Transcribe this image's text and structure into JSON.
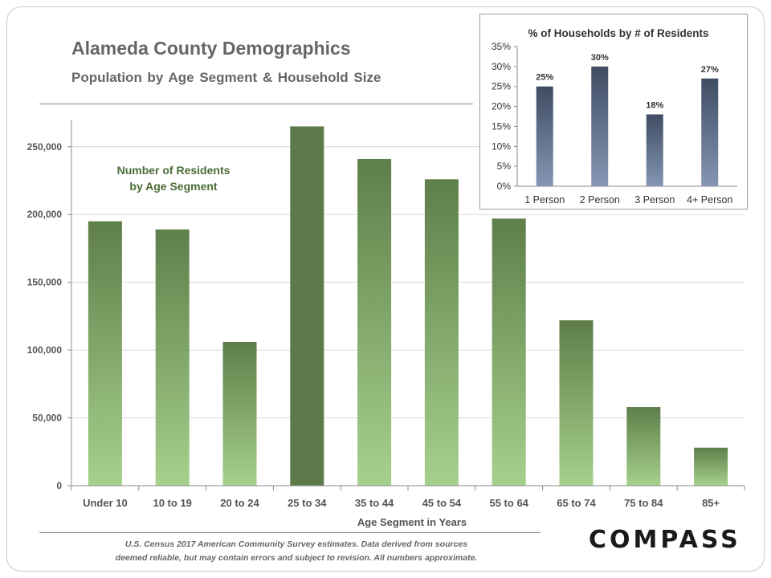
{
  "header": {
    "title": "Alameda County Demographics",
    "subtitle": "Population by Age Segment & Household Size"
  },
  "footer": {
    "note_line1": "U.S. Census 2017 American Community Survey estimates. Data derived from sources",
    "note_line2": "deemed reliable, but may contain errors and subject to revision. All numbers approximate.",
    "logo": "COMPASS"
  },
  "chart_data": [
    {
      "type": "bar",
      "annotation": "Number of Residents by Age Segment",
      "annotation_lines": [
        "Number of Residents",
        "by Age Segment"
      ],
      "xlabel": "Age Segment in Years",
      "ylabel": "",
      "categories": [
        "Under 10",
        "10 to 19",
        "20 to 24",
        "25 to 34",
        "35 to 44",
        "45 to 54",
        "55 to 64",
        "65 to 74",
        "75 to 84",
        "85+"
      ],
      "values": [
        195000,
        189000,
        106000,
        265000,
        241000,
        226000,
        197000,
        122000,
        58000,
        28000
      ],
      "highlight_index": 3,
      "ylim": [
        0,
        270000
      ],
      "yticks": [
        0,
        50000,
        100000,
        150000,
        200000,
        250000
      ],
      "ytick_labels": [
        "0",
        "50,000",
        "100,000",
        "150,000",
        "200,000",
        "250,000"
      ],
      "grid": true,
      "colors": {
        "bar_top": "#5e7e4a",
        "bar_bottom": "#a6d18c",
        "highlight": "#5c7a4a",
        "annotation": "#4a6b35",
        "axis_text": "#555555"
      }
    },
    {
      "type": "bar",
      "title": "% of Households by # of Residents",
      "categories": [
        "1 Person",
        "2 Person",
        "3 Person",
        "4+ Person"
      ],
      "values": [
        25,
        30,
        18,
        27
      ],
      "data_labels": [
        "25%",
        "30%",
        "18%",
        "27%"
      ],
      "ylim": [
        0,
        35
      ],
      "yticks": [
        0,
        5,
        10,
        15,
        20,
        25,
        30,
        35
      ],
      "ytick_labels": [
        "0%",
        "5%",
        "10%",
        "15%",
        "20%",
        "25%",
        "30%",
        "35%"
      ],
      "grid": false,
      "colors": {
        "bar_top": "#3f4d63",
        "bar_bottom": "#8496b4",
        "axis_text": "#333333"
      }
    }
  ]
}
